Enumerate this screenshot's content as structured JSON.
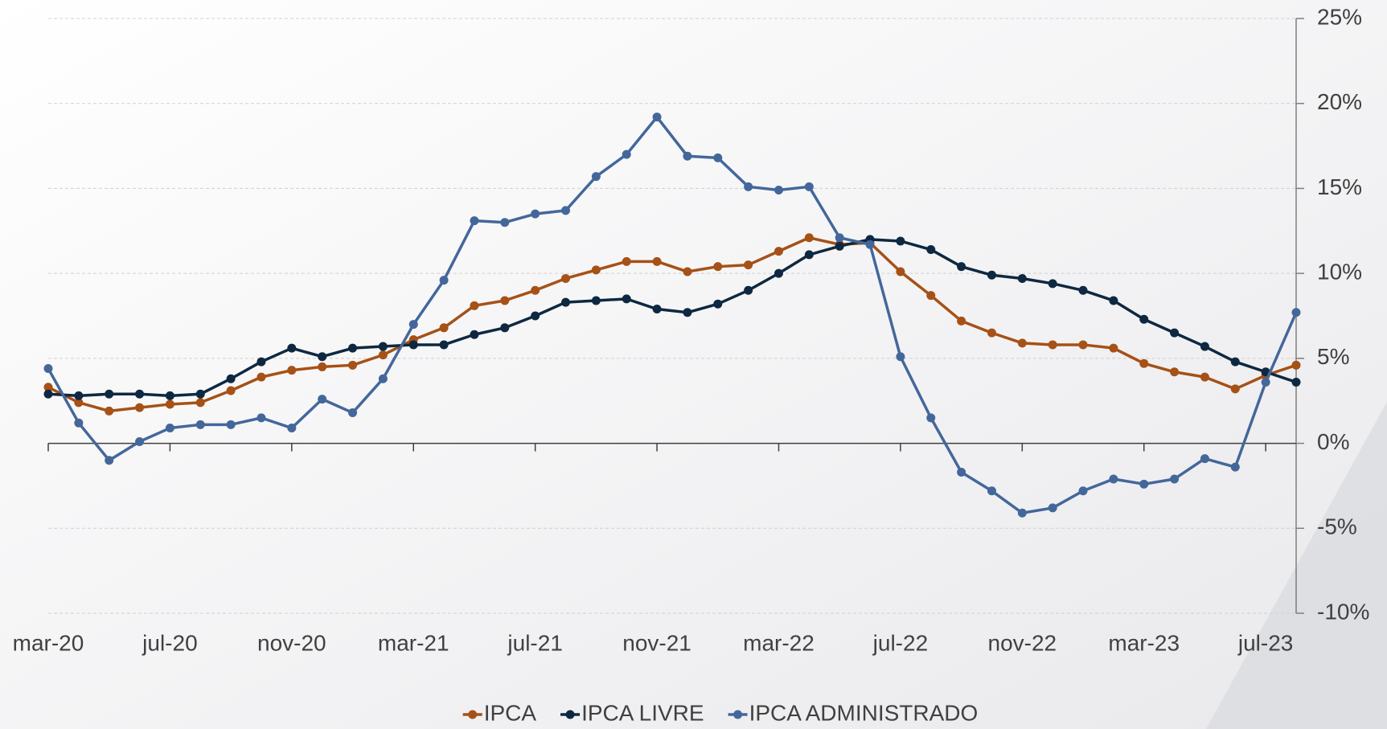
{
  "chart_data": {
    "type": "line",
    "categories": [
      "mar-20",
      null,
      null,
      null,
      "jul-20",
      null,
      null,
      null,
      "nov-20",
      null,
      null,
      null,
      "mar-21",
      null,
      null,
      null,
      "jul-21",
      null,
      null,
      null,
      "nov-21",
      null,
      null,
      null,
      "mar-22",
      null,
      null,
      null,
      "jul-22",
      null,
      null,
      null,
      "nov-22",
      null,
      null,
      null,
      "mar-23",
      null,
      null,
      null,
      "jul-23",
      null
    ],
    "series": [
      {
        "name": "IPCA",
        "color": "#a65116",
        "values": [
          3.3,
          2.4,
          1.9,
          2.1,
          2.3,
          2.4,
          3.1,
          3.9,
          4.3,
          4.5,
          4.6,
          5.2,
          6.1,
          6.8,
          8.1,
          8.4,
          9.0,
          9.7,
          10.2,
          10.7,
          10.7,
          10.1,
          10.4,
          10.5,
          11.3,
          12.1,
          11.7,
          11.8,
          10.1,
          8.7,
          7.2,
          6.5,
          5.9,
          5.8,
          5.8,
          5.6,
          4.7,
          4.2,
          3.9,
          3.2,
          4.0,
          4.6
        ]
      },
      {
        "name": "IPCA LIVRE",
        "color": "#0e2841",
        "values": [
          2.9,
          2.8,
          2.9,
          2.9,
          2.8,
          2.9,
          3.8,
          4.8,
          5.6,
          5.1,
          5.6,
          5.7,
          5.8,
          5.8,
          6.4,
          6.8,
          7.5,
          8.3,
          8.4,
          8.5,
          7.9,
          7.7,
          8.2,
          9.0,
          10.0,
          11.1,
          11.6,
          12.0,
          11.9,
          11.4,
          10.4,
          9.9,
          9.7,
          9.4,
          9.0,
          8.4,
          7.3,
          6.5,
          5.7,
          4.8,
          4.2,
          3.6
        ]
      },
      {
        "name": "IPCA ADMINISTRADO",
        "color": "#44679a",
        "values": [
          4.4,
          1.2,
          -1.0,
          0.1,
          0.9,
          1.1,
          1.1,
          1.5,
          0.9,
          2.6,
          1.8,
          3.8,
          7.0,
          9.6,
          13.1,
          13.0,
          13.5,
          13.7,
          15.7,
          17.0,
          19.2,
          16.9,
          16.8,
          15.1,
          14.9,
          15.1,
          12.1,
          11.7,
          5.1,
          1.5,
          -1.7,
          -2.8,
          -4.1,
          -3.8,
          -2.8,
          -2.1,
          -2.4,
          -2.1,
          -0.9,
          -1.4,
          3.6,
          7.7
        ]
      }
    ],
    "ylim": [
      -10,
      25
    ],
    "yticks": [
      {
        "value": -10,
        "label": "-10%"
      },
      {
        "value": -5,
        "label": "-5%"
      },
      {
        "value": 0,
        "label": "0%"
      },
      {
        "value": 5,
        "label": "5%"
      },
      {
        "value": 10,
        "label": "10%"
      },
      {
        "value": 15,
        "label": "15%"
      },
      {
        "value": 20,
        "label": "20%"
      },
      {
        "value": 25,
        "label": "25%"
      }
    ],
    "grid": true,
    "legend": "bottom"
  }
}
